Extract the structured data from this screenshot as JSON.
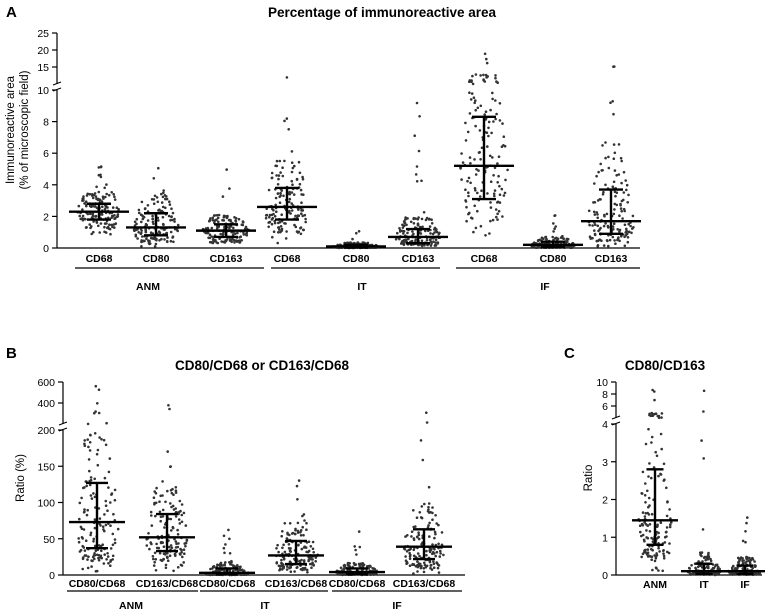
{
  "chart_data": [
    {
      "panel": "A",
      "type": "scatter",
      "title": "Percentage of immunoreactive area",
      "ylabel": [
        "Immunoreactive area",
        "(% of microscopic field)"
      ],
      "ylim": [
        0,
        25
      ],
      "axis_break": 10,
      "yticks_lower": [
        "0",
        "2",
        "4",
        "6",
        "8",
        "10"
      ],
      "yticks_upper": [
        "15",
        "20",
        "25"
      ],
      "categories": [
        "CD68",
        "CD80",
        "CD163",
        "CD68",
        "CD80",
        "CD163",
        "CD68",
        "CD80",
        "CD163"
      ],
      "groups": [
        "ANM",
        "IT",
        "IF"
      ],
      "series": [
        {
          "name": "ANM CD68",
          "median": 2.3,
          "q1": 1.8,
          "q3": 2.8,
          "min": 0.8,
          "max": 6.2
        },
        {
          "name": "ANM CD80",
          "median": 1.3,
          "q1": 0.8,
          "q3": 2.2,
          "min": 0.1,
          "max": 5.6
        },
        {
          "name": "ANM CD163",
          "median": 1.1,
          "q1": 0.7,
          "q3": 1.5,
          "min": 0.1,
          "max": 5.2
        },
        {
          "name": "IT CD68",
          "median": 2.6,
          "q1": 1.8,
          "q3": 3.8,
          "min": 0.3,
          "max": 13.0
        },
        {
          "name": "IT CD80",
          "median": 0.1,
          "q1": 0.03,
          "q3": 0.2,
          "min": 0.0,
          "max": 1.2
        },
        {
          "name": "IT CD163",
          "median": 0.7,
          "q1": 0.3,
          "q3": 1.2,
          "min": 0.0,
          "max": 10.5
        },
        {
          "name": "IF CD68",
          "median": 5.2,
          "q1": 3.1,
          "q3": 8.3,
          "min": 0.5,
          "max": 20.0
        },
        {
          "name": "IF CD80",
          "median": 0.2,
          "q1": 0.05,
          "q3": 0.4,
          "min": 0.0,
          "max": 2.7
        },
        {
          "name": "IF CD163",
          "median": 1.7,
          "q1": 0.9,
          "q3": 3.7,
          "min": 0.1,
          "max": 19.0
        }
      ]
    },
    {
      "panel": "B",
      "type": "scatter",
      "title": "CD80/CD68 or CD163/CD68",
      "ylabel": "Ratio (%)",
      "ylim": [
        0,
        600
      ],
      "axis_break": 200,
      "yticks_lower": [
        "0",
        "50",
        "100",
        "150",
        "200"
      ],
      "yticks_upper": [
        "400",
        "600"
      ],
      "categories": [
        "CD80/CD68",
        "CD163/CD68",
        "CD80/CD68",
        "CD163/CD68",
        "CD80/CD68",
        "CD163/CD68"
      ],
      "groups": [
        "ANM",
        "IT",
        "IF"
      ],
      "series": [
        {
          "name": "ANM CD80/CD68",
          "median": 73,
          "q1": 37,
          "q3": 127,
          "min": 5,
          "max": 570
        },
        {
          "name": "ANM CD163/CD68",
          "median": 52,
          "q1": 33,
          "q3": 84,
          "min": 5,
          "max": 400
        },
        {
          "name": "IT CD80/CD68",
          "median": 3,
          "q1": 1,
          "q3": 9,
          "min": 0,
          "max": 72
        },
        {
          "name": "IT CD163/CD68",
          "median": 27,
          "q1": 15,
          "q3": 47,
          "min": 0,
          "max": 175
        },
        {
          "name": "IF CD80/CD68",
          "median": 4,
          "q1": 1,
          "q3": 9,
          "min": 0,
          "max": 80
        },
        {
          "name": "IF CD163/CD68",
          "median": 39,
          "q1": 22,
          "q3": 63,
          "min": 0,
          "max": 320
        }
      ]
    },
    {
      "panel": "C",
      "type": "scatter",
      "title": "CD80/CD163",
      "ylabel": "Ratio",
      "ylim": [
        0,
        10
      ],
      "axis_break": 4,
      "yticks_lower": [
        "0",
        "1",
        "2",
        "3",
        "4"
      ],
      "yticks_upper": [
        "6",
        "8",
        "10"
      ],
      "categories": [
        "ANM",
        "IT",
        "IF"
      ],
      "series": [
        {
          "name": "ANM",
          "median": 1.45,
          "q1": 0.8,
          "q3": 2.8,
          "min": 0.1,
          "max": 9.0
        },
        {
          "name": "IT",
          "median": 0.1,
          "q1": 0.03,
          "q3": 0.3,
          "min": 0.0,
          "max": 9.5
        },
        {
          "name": "IF",
          "median": 0.1,
          "q1": 0.03,
          "q3": 0.25,
          "min": 0.0,
          "max": 1.8
        }
      ]
    }
  ]
}
